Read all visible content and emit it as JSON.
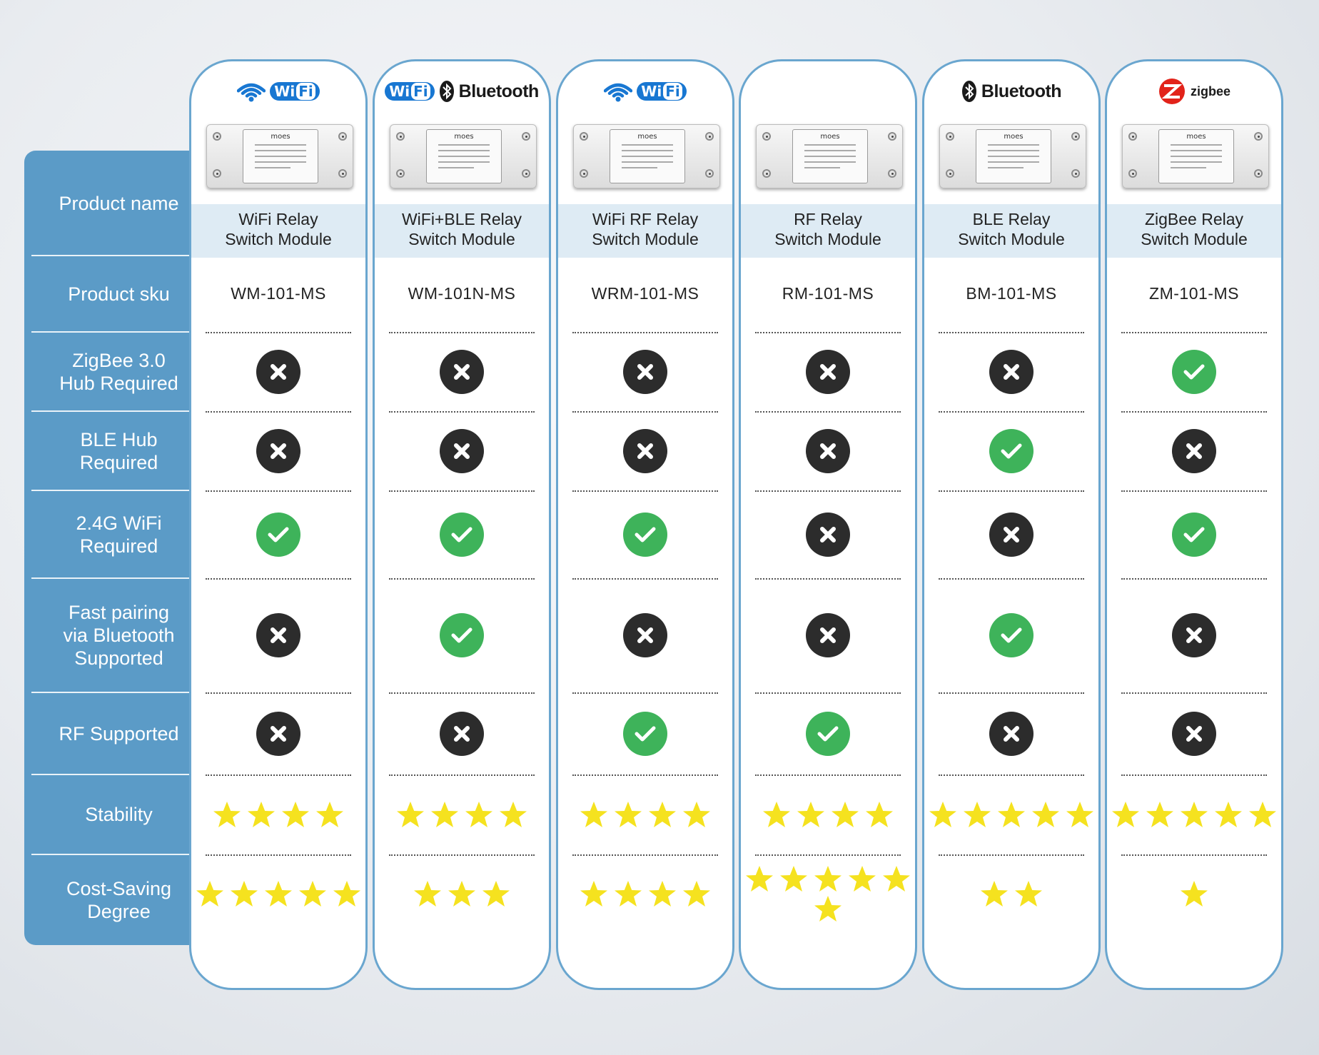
{
  "row_labels": [
    "Product name",
    "Product sku",
    "ZigBee 3.0\nHub Required",
    "BLE Hub\nRequired",
    "2.4G WiFi\nRequired",
    "Fast pairing\nvia Bluetooth\nSupported",
    "RF Supported",
    "Stability",
    "Cost-Saving\nDegree"
  ],
  "device_brand": "moes",
  "logo_texts": {
    "wifi_wi": "Wi",
    "wifi_fi": "Fi",
    "bluetooth": "Bluetooth",
    "zigbee": "zigbee"
  },
  "colors": {
    "label_panel": "#5b9bc7",
    "column_border": "#6aa6cf",
    "name_band": "#deebf4",
    "check_green": "#3eb35a",
    "cross_dark": "#2c2c2c",
    "star_yellow": "#f5e21f",
    "wifi_blue": "#1877d2",
    "zigbee_red": "#e2231a"
  },
  "products": [
    {
      "logos": [
        "wifi-icon",
        "wifi-badge"
      ],
      "name": "WiFi Relay\nSwitch Module",
      "sku": "WM-101-MS",
      "zigbee_hub_required": false,
      "ble_hub_required": false,
      "wifi_required": true,
      "fast_pairing_bluetooth": false,
      "rf_supported": false,
      "stability_stars": 4,
      "cost_saving_stars": 5
    },
    {
      "logos": [
        "wifi-badge",
        "bluetooth-icon",
        "bluetooth-word"
      ],
      "name": "WiFi+BLE Relay\nSwitch Module",
      "sku": "WM-101N-MS",
      "zigbee_hub_required": false,
      "ble_hub_required": false,
      "wifi_required": true,
      "fast_pairing_bluetooth": true,
      "rf_supported": false,
      "stability_stars": 4,
      "cost_saving_stars": 3
    },
    {
      "logos": [
        "wifi-icon",
        "wifi-badge"
      ],
      "name": "WiFi RF Relay\nSwitch Module",
      "sku": "WRM-101-MS",
      "zigbee_hub_required": false,
      "ble_hub_required": false,
      "wifi_required": true,
      "fast_pairing_bluetooth": false,
      "rf_supported": true,
      "stability_stars": 4,
      "cost_saving_stars": 4
    },
    {
      "logos": [],
      "name": "RF Relay\nSwitch Module",
      "sku": "RM-101-MS",
      "zigbee_hub_required": false,
      "ble_hub_required": false,
      "wifi_required": false,
      "fast_pairing_bluetooth": false,
      "rf_supported": true,
      "stability_stars": 4,
      "cost_saving_stars": 6
    },
    {
      "logos": [
        "bluetooth-icon",
        "bluetooth-word"
      ],
      "name": "BLE Relay\nSwitch Module",
      "sku": "BM-101-MS",
      "zigbee_hub_required": false,
      "ble_hub_required": true,
      "wifi_required": false,
      "fast_pairing_bluetooth": true,
      "rf_supported": false,
      "stability_stars": 5,
      "cost_saving_stars": 2
    },
    {
      "logos": [
        "zigbee-icon",
        "zigbee-word"
      ],
      "name": "ZigBee Relay\nSwitch Module",
      "sku": "ZM-101-MS",
      "zigbee_hub_required": true,
      "ble_hub_required": false,
      "wifi_required": true,
      "fast_pairing_bluetooth": false,
      "rf_supported": false,
      "stability_stars": 5,
      "cost_saving_stars": 1
    }
  ]
}
